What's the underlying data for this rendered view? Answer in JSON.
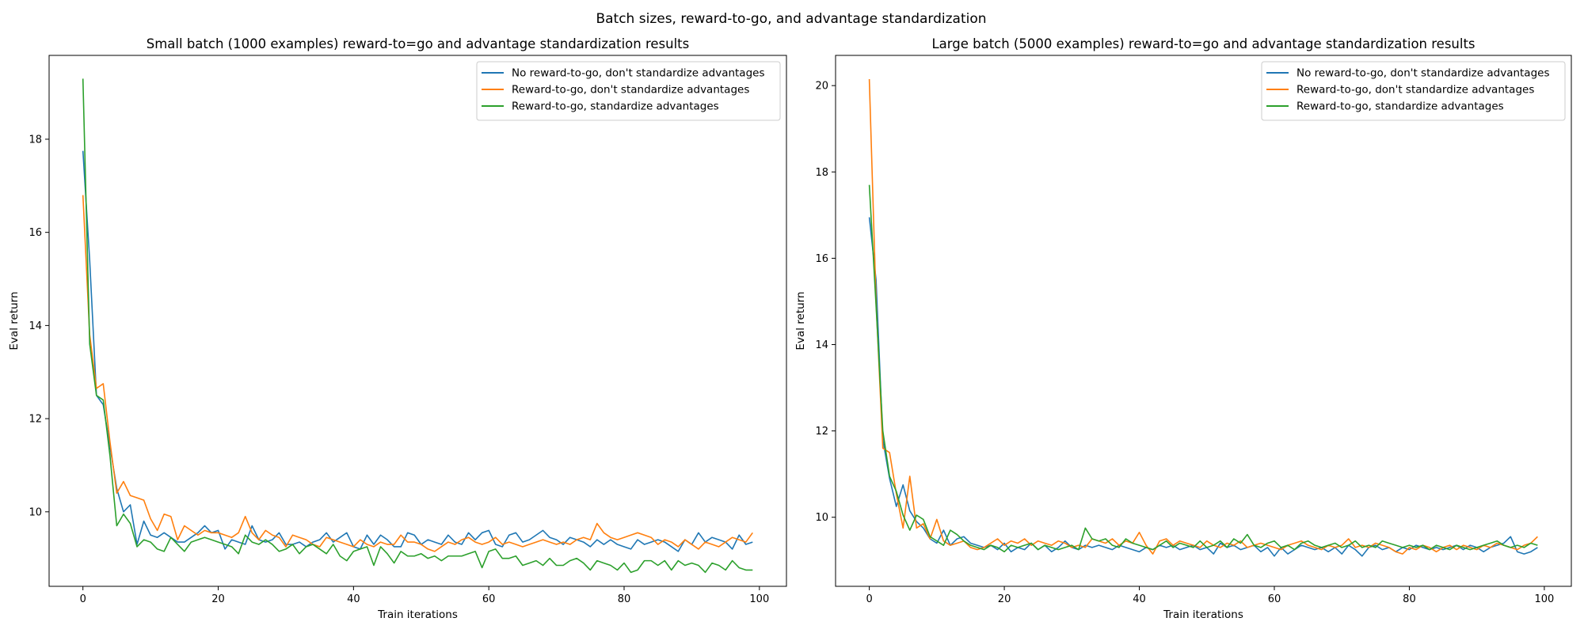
{
  "figure": {
    "suptitle": "Batch sizes, reward-to-go, and advantage standardization"
  },
  "colors": {
    "series": [
      "#1f77b4",
      "#ff7f0e",
      "#2ca02c"
    ],
    "axes": "#000000",
    "legend_border": "#cccccc"
  },
  "chart_data": [
    {
      "type": "line",
      "title": "Small batch (1000 examples) reward-to=go and advantage standardization results",
      "xlabel": "Train iterations",
      "ylabel": "Eval return",
      "xlim": [
        -5,
        104
      ],
      "ylim": [
        8.4,
        19.8
      ],
      "xticks": [
        0,
        20,
        40,
        60,
        80,
        100
      ],
      "yticks": [
        10,
        12,
        14,
        16,
        18
      ],
      "grid": false,
      "legend_position": "upper right",
      "x": {
        "start": 0,
        "stop": 99,
        "step": 1
      },
      "series": [
        {
          "name": "No reward-to-go, don't standardize advantages",
          "values": [
            17.75,
            15.4,
            12.5,
            12.3,
            11.4,
            10.5,
            10.0,
            10.15,
            9.3,
            9.8,
            9.5,
            9.45,
            9.55,
            9.45,
            9.35,
            9.35,
            9.45,
            9.55,
            9.7,
            9.55,
            9.6,
            9.2,
            9.4,
            9.35,
            9.3,
            9.7,
            9.4,
            9.35,
            9.4,
            9.55,
            9.3,
            9.3,
            9.35,
            9.25,
            9.35,
            9.4,
            9.55,
            9.35,
            9.45,
            9.55,
            9.25,
            9.2,
            9.5,
            9.3,
            9.5,
            9.4,
            9.25,
            9.25,
            9.55,
            9.5,
            9.3,
            9.4,
            9.35,
            9.3,
            9.5,
            9.35,
            9.3,
            9.55,
            9.4,
            9.55,
            9.6,
            9.3,
            9.25,
            9.5,
            9.55,
            9.35,
            9.4,
            9.5,
            9.6,
            9.45,
            9.4,
            9.3,
            9.45,
            9.4,
            9.35,
            9.25,
            9.4,
            9.3,
            9.4,
            9.3,
            9.25,
            9.2,
            9.4,
            9.3,
            9.35,
            9.4,
            9.35,
            9.25,
            9.15,
            9.4,
            9.3,
            9.55,
            9.35,
            9.45,
            9.4,
            9.35,
            9.2,
            9.5,
            9.3,
            9.35
          ]
        },
        {
          "name": "Reward-to-go, don't standardize advantages",
          "values": [
            16.8,
            13.8,
            12.65,
            12.75,
            11.5,
            10.4,
            10.65,
            10.35,
            10.3,
            10.25,
            9.85,
            9.6,
            9.95,
            9.9,
            9.4,
            9.7,
            9.6,
            9.5,
            9.6,
            9.55,
            9.55,
            9.5,
            9.45,
            9.55,
            9.9,
            9.55,
            9.4,
            9.6,
            9.5,
            9.45,
            9.25,
            9.5,
            9.45,
            9.4,
            9.3,
            9.25,
            9.45,
            9.4,
            9.35,
            9.3,
            9.25,
            9.4,
            9.3,
            9.25,
            9.35,
            9.3,
            9.3,
            9.5,
            9.35,
            9.35,
            9.3,
            9.2,
            9.15,
            9.25,
            9.35,
            9.3,
            9.4,
            9.45,
            9.35,
            9.3,
            9.35,
            9.45,
            9.3,
            9.35,
            9.3,
            9.25,
            9.3,
            9.35,
            9.4,
            9.35,
            9.3,
            9.35,
            9.3,
            9.4,
            9.45,
            9.4,
            9.75,
            9.55,
            9.45,
            9.4,
            9.45,
            9.5,
            9.55,
            9.5,
            9.45,
            9.3,
            9.4,
            9.35,
            9.25,
            9.4,
            9.3,
            9.2,
            9.35,
            9.3,
            9.25,
            9.35,
            9.45,
            9.4,
            9.35,
            9.55
          ]
        },
        {
          "name": "Reward-to-go, standardize advantages",
          "values": [
            19.3,
            13.6,
            12.5,
            12.4,
            11.2,
            9.7,
            9.95,
            9.75,
            9.25,
            9.4,
            9.35,
            9.2,
            9.15,
            9.45,
            9.3,
            9.15,
            9.35,
            9.4,
            9.45,
            9.4,
            9.35,
            9.3,
            9.25,
            9.1,
            9.5,
            9.35,
            9.3,
            9.4,
            9.3,
            9.15,
            9.2,
            9.3,
            9.1,
            9.25,
            9.3,
            9.2,
            9.1,
            9.3,
            9.05,
            8.95,
            9.15,
            9.2,
            9.25,
            8.85,
            9.25,
            9.1,
            8.9,
            9.15,
            9.05,
            9.05,
            9.1,
            9.0,
            9.05,
            8.95,
            9.05,
            9.05,
            9.05,
            9.1,
            9.15,
            8.8,
            9.15,
            9.2,
            9.0,
            9.0,
            9.05,
            8.85,
            8.9,
            8.95,
            8.85,
            9.0,
            8.85,
            8.85,
            8.95,
            9.0,
            8.9,
            8.75,
            8.95,
            8.9,
            8.85,
            8.75,
            8.9,
            8.7,
            8.75,
            8.95,
            8.95,
            8.85,
            8.95,
            8.75,
            8.95,
            8.85,
            8.9,
            8.85,
            8.7,
            8.9,
            8.85,
            8.75,
            8.95,
            8.8,
            8.75,
            8.75
          ]
        }
      ]
    },
    {
      "type": "line",
      "title": "Large batch (5000 examples) reward-to=go and advantage standardization results",
      "xlabel": "Train iterations",
      "ylabel": "Eval return",
      "xlim": [
        -5,
        104
      ],
      "ylim": [
        8.4,
        20.7
      ],
      "xticks": [
        0,
        20,
        40,
        60,
        80,
        100
      ],
      "yticks": [
        10,
        12,
        14,
        16,
        18,
        20
      ],
      "grid": false,
      "legend_position": "upper right",
      "x": {
        "start": 0,
        "stop": 99,
        "step": 1
      },
      "series": [
        {
          "name": "No reward-to-go, don't standardize advantages",
          "values": [
            16.95,
            15.5,
            11.8,
            10.9,
            10.25,
            10.75,
            10.15,
            9.9,
            9.75,
            9.5,
            9.4,
            9.7,
            9.35,
            9.5,
            9.55,
            9.4,
            9.35,
            9.3,
            9.35,
            9.25,
            9.4,
            9.2,
            9.3,
            9.25,
            9.4,
            9.25,
            9.35,
            9.2,
            9.3,
            9.45,
            9.3,
            9.25,
            9.35,
            9.3,
            9.35,
            9.3,
            9.25,
            9.35,
            9.3,
            9.25,
            9.2,
            9.3,
            9.25,
            9.35,
            9.3,
            9.35,
            9.25,
            9.3,
            9.35,
            9.25,
            9.3,
            9.15,
            9.4,
            9.3,
            9.35,
            9.25,
            9.3,
            9.35,
            9.2,
            9.3,
            9.1,
            9.3,
            9.15,
            9.25,
            9.35,
            9.3,
            9.25,
            9.3,
            9.2,
            9.3,
            9.15,
            9.35,
            9.25,
            9.1,
            9.3,
            9.35,
            9.25,
            9.3,
            9.2,
            9.3,
            9.25,
            9.35,
            9.3,
            9.25,
            9.3,
            9.25,
            9.3,
            9.35,
            9.25,
            9.35,
            9.3,
            9.2,
            9.3,
            9.35,
            9.4,
            9.55,
            9.2,
            9.15,
            9.2,
            9.3
          ]
        },
        {
          "name": "Reward-to-go, don't standardize advantages",
          "values": [
            20.15,
            15.0,
            11.6,
            11.5,
            10.55,
            9.75,
            10.95,
            9.75,
            9.85,
            9.5,
            9.95,
            9.45,
            9.35,
            9.4,
            9.45,
            9.3,
            9.25,
            9.3,
            9.4,
            9.5,
            9.35,
            9.45,
            9.4,
            9.5,
            9.35,
            9.45,
            9.4,
            9.35,
            9.45,
            9.4,
            9.3,
            9.35,
            9.3,
            9.5,
            9.45,
            9.4,
            9.5,
            9.35,
            9.45,
            9.4,
            9.65,
            9.35,
            9.15,
            9.45,
            9.5,
            9.35,
            9.45,
            9.4,
            9.35,
            9.3,
            9.45,
            9.35,
            9.3,
            9.4,
            9.35,
            9.45,
            9.3,
            9.35,
            9.4,
            9.35,
            9.3,
            9.25,
            9.35,
            9.4,
            9.45,
            9.35,
            9.3,
            9.25,
            9.35,
            9.3,
            9.35,
            9.5,
            9.3,
            9.35,
            9.3,
            9.4,
            9.35,
            9.3,
            9.2,
            9.15,
            9.3,
            9.25,
            9.35,
            9.3,
            9.2,
            9.3,
            9.35,
            9.25,
            9.35,
            9.3,
            9.25,
            9.35,
            9.3,
            9.4,
            9.35,
            9.3,
            9.25,
            9.35,
            9.4,
            9.55
          ]
        },
        {
          "name": "Reward-to-go, standardize advantages",
          "values": [
            17.7,
            14.9,
            12.0,
            10.95,
            10.6,
            10.05,
            9.7,
            10.05,
            9.95,
            9.55,
            9.45,
            9.35,
            9.7,
            9.6,
            9.45,
            9.35,
            9.3,
            9.25,
            9.35,
            9.3,
            9.2,
            9.35,
            9.3,
            9.35,
            9.4,
            9.25,
            9.35,
            9.3,
            9.25,
            9.3,
            9.35,
            9.25,
            9.75,
            9.5,
            9.45,
            9.5,
            9.35,
            9.3,
            9.5,
            9.4,
            9.35,
            9.3,
            9.25,
            9.35,
            9.45,
            9.3,
            9.4,
            9.35,
            9.3,
            9.45,
            9.3,
            9.35,
            9.45,
            9.3,
            9.5,
            9.4,
            9.6,
            9.35,
            9.3,
            9.4,
            9.45,
            9.3,
            9.35,
            9.25,
            9.4,
            9.45,
            9.35,
            9.3,
            9.35,
            9.4,
            9.3,
            9.35,
            9.45,
            9.3,
            9.35,
            9.3,
            9.45,
            9.4,
            9.35,
            9.3,
            9.35,
            9.3,
            9.35,
            9.25,
            9.35,
            9.3,
            9.25,
            9.35,
            9.3,
            9.25,
            9.3,
            9.35,
            9.4,
            9.45,
            9.35,
            9.3,
            9.35,
            9.3,
            9.4,
            9.35
          ]
        }
      ]
    }
  ]
}
